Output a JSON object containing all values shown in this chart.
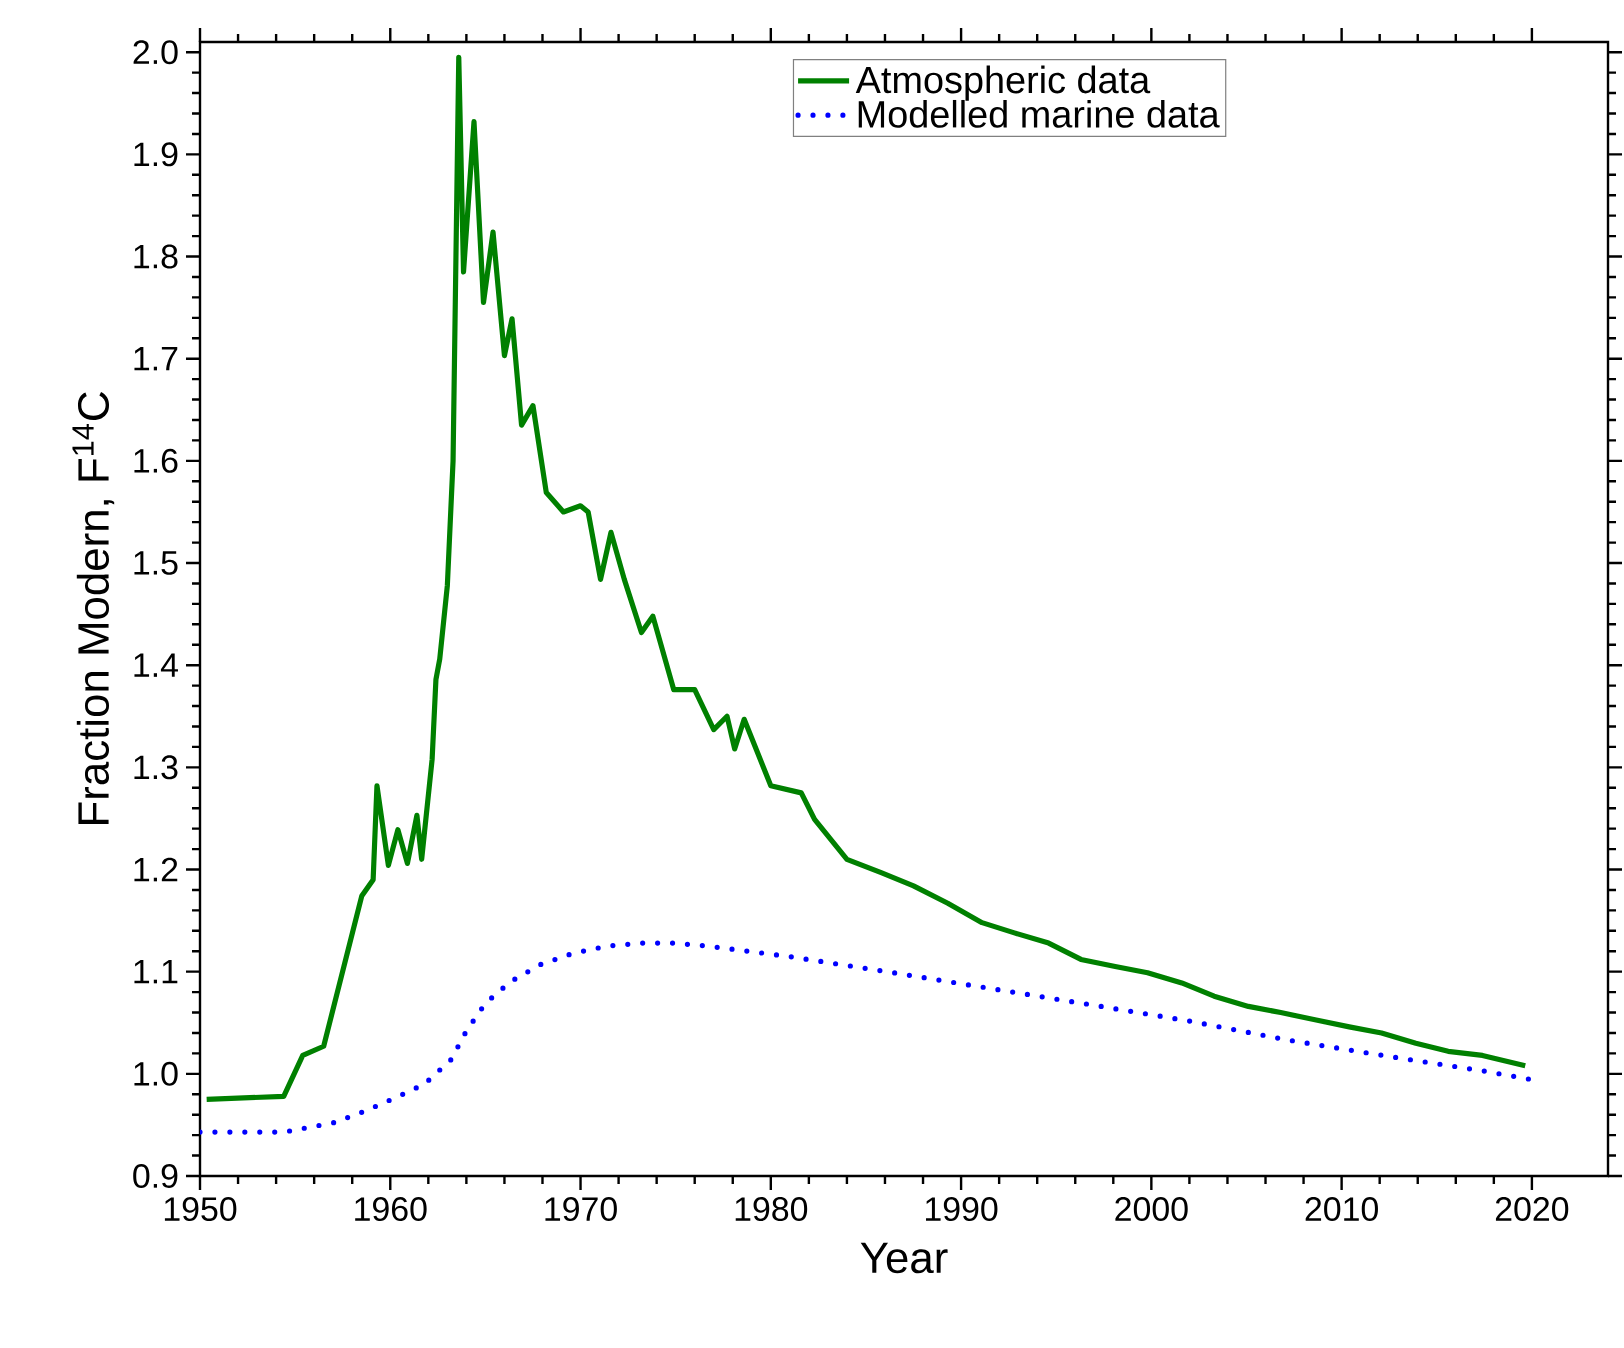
{
  "chart_data": {
    "type": "line",
    "xlabel": "Year",
    "ylabel": "Fraction Modern, F$^{14}$C",
    "xlim": [
      1950,
      2024
    ],
    "ylim": [
      0.9,
      2.01
    ],
    "xticks": [
      1950,
      1960,
      1970,
      1980,
      1990,
      2000,
      2010,
      2020
    ],
    "yticks": [
      0.9,
      {
        "value": 1.0,
        "label": "1.0"
      },
      1.1,
      1.2,
      1.3,
      1.4,
      1.5,
      1.6,
      1.7,
      1.8,
      1.9,
      {
        "value": 2.0,
        "label": "2.0"
      }
    ],
    "legend": "top",
    "series": [
      {
        "name": "Atmospheric data",
        "color": "#008000",
        "line_style": "solid",
        "x": [
          1950.35,
          1954.4,
          1955.4,
          1956.5,
          1958.5,
          1959.1,
          1959.3,
          1959.9,
          1960.4,
          1960.9,
          1961.4,
          1961.65,
          1962.2,
          1962.4,
          1962.6,
          1963.0,
          1963.3,
          1963.6,
          1963.85,
          1964.4,
          1964.9,
          1965.4,
          1966.0,
          1966.4,
          1966.9,
          1967.5,
          1968.2,
          1969.1,
          1970.0,
          1970.4,
          1971.05,
          1971.6,
          1972.3,
          1973.2,
          1973.8,
          1974.9,
          1976.0,
          1977.0,
          1977.7,
          1978.1,
          1978.6,
          1980.0,
          1981.6,
          1982.3,
          1984.0,
          1985.8,
          1987.5,
          1989.3,
          1991.1,
          1992.8,
          1994.6,
          1996.3,
          1998.1,
          1999.8,
          2001.6,
          2003.3,
          2005.1,
          2006.8,
          2008.6,
          2010.4,
          2012.1,
          2013.9,
          2015.6,
          2017.4,
          2019.65
        ],
        "values": [
          0.975,
          0.978,
          1.018,
          1.027,
          1.174,
          1.19,
          1.282,
          1.204,
          1.239,
          1.206,
          1.253,
          1.21,
          1.308,
          1.386,
          1.406,
          1.478,
          1.6,
          1.995,
          1.785,
          1.932,
          1.755,
          1.824,
          1.703,
          1.739,
          1.635,
          1.654,
          1.569,
          1.55,
          1.556,
          1.55,
          1.484,
          1.53,
          1.484,
          1.432,
          1.448,
          1.376,
          1.376,
          1.337,
          1.35,
          1.318,
          1.347,
          1.282,
          1.275,
          1.249,
          1.21,
          1.197,
          1.184,
          1.167,
          1.148,
          1.138,
          1.128,
          1.112,
          1.105,
          1.099,
          1.089,
          1.076,
          1.066,
          1.06,
          1.053,
          1.046,
          1.04,
          1.03,
          1.022,
          1.018,
          1.008
        ]
      },
      {
        "name": "Modelled marine data",
        "color": "#0000ff",
        "line_style": "dotted",
        "x": [
          1950,
          1954.4,
          1957,
          1958.6,
          1960.2,
          1961.8,
          1963.2,
          1964,
          1965,
          1966.3,
          1967.9,
          1969.6,
          1971.4,
          1973.2,
          1974.9,
          1976.7,
          1980.9,
          1986.1,
          1991.4,
          1996.7,
          2001.9,
          2007.2,
          2012.5,
          2017.4,
          2020.1
        ],
        "values": [
          0.943,
          0.943,
          0.952,
          0.963,
          0.976,
          0.99,
          1.014,
          1.042,
          1.069,
          1.09,
          1.107,
          1.118,
          1.125,
          1.128,
          1.128,
          1.125,
          1.115,
          1.1,
          1.084,
          1.068,
          1.052,
          1.033,
          1.017,
          1.003,
          0.994
        ]
      }
    ]
  }
}
